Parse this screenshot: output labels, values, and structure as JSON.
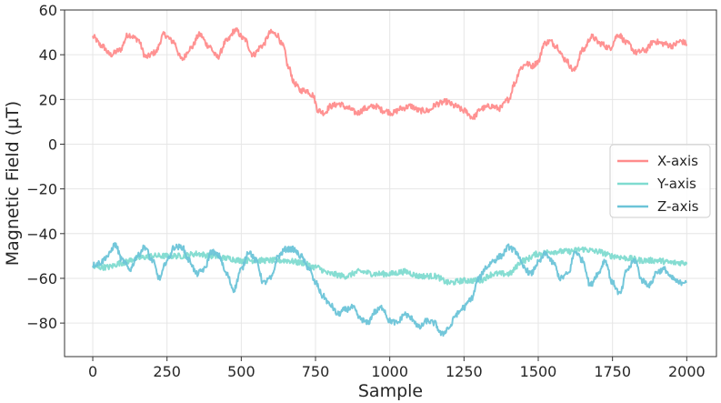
{
  "chart_data": {
    "type": "line",
    "title": "",
    "xlabel": "Sample",
    "ylabel": "Magnetic Field (µT)",
    "xlim": [
      -95,
      2100
    ],
    "ylim": [
      -95,
      60
    ],
    "xticks": [
      0,
      250,
      500,
      750,
      1000,
      1250,
      1500,
      1750,
      2000
    ],
    "yticks": [
      60,
      40,
      20,
      0,
      -20,
      -40,
      -60,
      -80
    ],
    "xtick_labels": [
      "0",
      "250",
      "500",
      "750",
      "1000",
      "1250",
      "1500",
      "1750",
      "2000"
    ],
    "ytick_labels": [
      "60",
      "40",
      "20",
      "0",
      "−20",
      "−40",
      "−60",
      "−80"
    ],
    "grid": true,
    "legend": {
      "placement": "center-right"
    },
    "series": [
      {
        "name": "X-axis",
        "color": "#ff8c8c",
        "x": [
          0,
          30,
          60,
          90,
          120,
          150,
          180,
          210,
          240,
          270,
          300,
          330,
          360,
          390,
          420,
          450,
          480,
          510,
          540,
          570,
          600,
          620,
          640,
          660,
          680,
          700,
          720,
          740,
          760,
          780,
          800,
          830,
          860,
          890,
          920,
          950,
          980,
          1010,
          1040,
          1070,
          1100,
          1130,
          1160,
          1190,
          1220,
          1250,
          1280,
          1310,
          1340,
          1370,
          1400,
          1420,
          1440,
          1460,
          1480,
          1500,
          1520,
          1540,
          1560,
          1590,
          1620,
          1650,
          1680,
          1710,
          1740,
          1770,
          1800,
          1830,
          1860,
          1890,
          1920,
          1950,
          1980,
          2000
        ],
        "y": [
          48,
          44,
          40,
          42,
          49,
          47,
          39,
          41,
          49,
          46,
          38,
          43,
          49,
          44,
          39,
          46,
          51,
          47,
          40,
          44,
          50,
          49,
          44,
          34,
          27,
          24,
          24,
          22,
          15,
          14,
          17,
          18,
          16,
          14,
          16,
          17,
          15,
          14,
          16,
          17,
          15,
          15,
          18,
          19,
          17,
          15,
          12,
          16,
          17,
          16,
          20,
          27,
          34,
          36,
          35,
          37,
          45,
          46,
          44,
          38,
          33,
          42,
          48,
          45,
          43,
          49,
          45,
          41,
          42,
          46,
          45,
          44,
          46,
          45
        ]
      },
      {
        "name": "Y-axis",
        "color": "#7fdbd0",
        "x": [
          0,
          50,
          100,
          150,
          200,
          250,
          300,
          350,
          400,
          450,
          500,
          550,
          600,
          650,
          700,
          750,
          800,
          850,
          900,
          950,
          1000,
          1050,
          1100,
          1150,
          1200,
          1250,
          1300,
          1350,
          1400,
          1450,
          1500,
          1550,
          1600,
          1650,
          1700,
          1750,
          1800,
          1850,
          1900,
          1950,
          2000
        ],
        "y": [
          -55,
          -55,
          -53,
          -51,
          -50,
          -50,
          -50,
          -49,
          -50,
          -51,
          -52,
          -52,
          -52,
          -52,
          -53,
          -55,
          -58,
          -59,
          -57,
          -58,
          -58,
          -57,
          -59,
          -59,
          -62,
          -61,
          -61,
          -58,
          -58,
          -52,
          -49,
          -48,
          -48,
          -47,
          -48,
          -50,
          -51,
          -52,
          -52,
          -53,
          -53
        ]
      },
      {
        "name": "Z-axis",
        "color": "#6cc4d8",
        "x": [
          0,
          25,
          50,
          75,
          100,
          125,
          150,
          175,
          200,
          225,
          250,
          275,
          300,
          325,
          350,
          375,
          400,
          425,
          450,
          475,
          500,
          525,
          550,
          575,
          600,
          625,
          650,
          675,
          700,
          725,
          750,
          775,
          800,
          825,
          850,
          875,
          900,
          925,
          950,
          975,
          1000,
          1025,
          1050,
          1075,
          1100,
          1125,
          1150,
          1175,
          1200,
          1225,
          1250,
          1275,
          1300,
          1325,
          1350,
          1375,
          1400,
          1425,
          1450,
          1475,
          1500,
          1525,
          1550,
          1575,
          1600,
          1625,
          1650,
          1675,
          1700,
          1725,
          1750,
          1775,
          1800,
          1825,
          1850,
          1875,
          1900,
          1925,
          1950,
          1975,
          2000
        ],
        "y": [
          -54,
          -53,
          -50,
          -45,
          -52,
          -56,
          -50,
          -46,
          -52,
          -60,
          -52,
          -46,
          -46,
          -52,
          -58,
          -56,
          -48,
          -50,
          -58,
          -65,
          -56,
          -48,
          -52,
          -62,
          -60,
          -50,
          -47,
          -47,
          -50,
          -55,
          -62,
          -68,
          -72,
          -76,
          -74,
          -73,
          -78,
          -80,
          -75,
          -73,
          -79,
          -80,
          -76,
          -78,
          -82,
          -79,
          -80,
          -85,
          -82,
          -76,
          -73,
          -69,
          -60,
          -55,
          -52,
          -50,
          -46,
          -48,
          -55,
          -58,
          -53,
          -49,
          -53,
          -60,
          -58,
          -48,
          -52,
          -63,
          -58,
          -52,
          -62,
          -67,
          -56,
          -52,
          -61,
          -63,
          -57,
          -56,
          -60,
          -62,
          -61
        ]
      }
    ]
  }
}
